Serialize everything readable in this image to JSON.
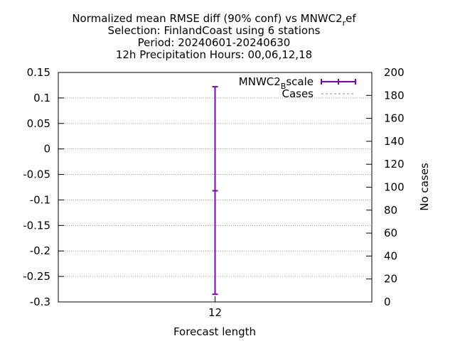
{
  "chart_data": {
    "type": "errorbar",
    "title_lines": [
      "Normalized mean RMSE diff (90% conf) vs MNWC2_ref",
      "Selection: FinlandCoast using      6 stations",
      "Period: 20240601-20240630",
      "12h Precipitation    Hours: 00,06,12,18"
    ],
    "xlabel": "Forecast length",
    "ylabel_right": "No cases",
    "x_categories": [
      "12"
    ],
    "ylim_left": [
      -0.3,
      0.15
    ],
    "yticks_left": [
      0.15,
      0.1,
      0.05,
      0,
      -0.05,
      -0.1,
      -0.15,
      -0.2,
      -0.25,
      -0.3
    ],
    "ytick_labels_left": [
      "0.15",
      "0.1",
      "0.05",
      "0",
      "-0.05",
      "-0.1",
      "-0.15",
      "-0.2",
      "-0.25",
      "-0.3"
    ],
    "ylim_right": [
      0,
      200
    ],
    "yticks_right": [
      200,
      180,
      160,
      140,
      120,
      100,
      80,
      60,
      40,
      20,
      0
    ],
    "grid": true,
    "legend_position": "top-right",
    "series": [
      {
        "name": "MNWC2_Bscale",
        "legend_main": "MNWC2",
        "legend_sub": "B",
        "legend_tail": "scale",
        "color": "#8000c0",
        "points": [
          {
            "x": "12",
            "y": -0.082,
            "low": -0.285,
            "high": 0.122
          }
        ]
      },
      {
        "name": "Cases",
        "color": "#a0a0a0",
        "dashed": true,
        "points": []
      }
    ]
  }
}
